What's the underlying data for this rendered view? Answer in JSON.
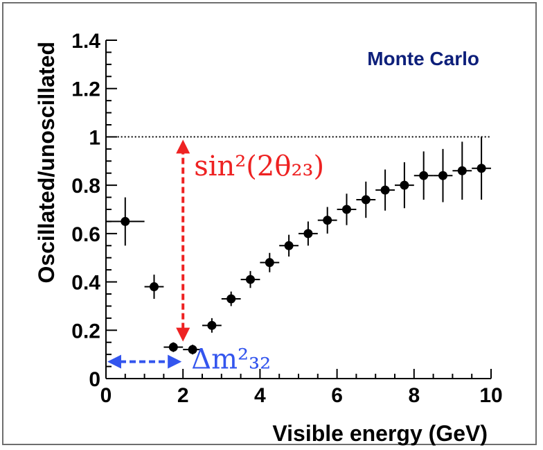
{
  "chart_data": {
    "type": "scatter",
    "title": "",
    "xlabel": "Visible energy (GeV)",
    "ylabel": "Oscillated/unoscillated",
    "xlim": [
      0,
      10
    ],
    "ylim": [
      0,
      1.4
    ],
    "x_ticks": [
      "0",
      "2",
      "4",
      "6",
      "8",
      "10"
    ],
    "y_ticks": [
      "0",
      "0.2",
      "0.4",
      "0.6",
      "0.8",
      "1",
      "1.2",
      "1.4"
    ],
    "grid": false,
    "reference_line_y": 1,
    "label": "Monte Carlo",
    "series": [
      {
        "points": [
          {
            "x": 0.5,
            "y": 0.65,
            "xerr": 0.5,
            "yerr": 0.1
          },
          {
            "x": 1.25,
            "y": 0.38,
            "xerr": 0.25,
            "yerr": 0.05
          },
          {
            "x": 1.75,
            "y": 0.13,
            "xerr": 0.25,
            "yerr": 0.02
          },
          {
            "x": 2.25,
            "y": 0.12,
            "xerr": 0.25,
            "yerr": 0.02
          },
          {
            "x": 2.75,
            "y": 0.22,
            "xerr": 0.25,
            "yerr": 0.03
          },
          {
            "x": 3.25,
            "y": 0.33,
            "xerr": 0.25,
            "yerr": 0.03
          },
          {
            "x": 3.75,
            "y": 0.41,
            "xerr": 0.25,
            "yerr": 0.035
          },
          {
            "x": 4.25,
            "y": 0.48,
            "xerr": 0.25,
            "yerr": 0.04
          },
          {
            "x": 4.75,
            "y": 0.55,
            "xerr": 0.25,
            "yerr": 0.045
          },
          {
            "x": 5.25,
            "y": 0.6,
            "xerr": 0.25,
            "yerr": 0.05
          },
          {
            "x": 5.75,
            "y": 0.655,
            "xerr": 0.25,
            "yerr": 0.055
          },
          {
            "x": 6.25,
            "y": 0.7,
            "xerr": 0.25,
            "yerr": 0.065
          },
          {
            "x": 6.75,
            "y": 0.74,
            "xerr": 0.25,
            "yerr": 0.075
          },
          {
            "x": 7.25,
            "y": 0.78,
            "xerr": 0.25,
            "yerr": 0.085
          },
          {
            "x": 7.75,
            "y": 0.8,
            "xerr": 0.25,
            "yerr": 0.095
          },
          {
            "x": 8.25,
            "y": 0.84,
            "xerr": 0.25,
            "yerr": 0.1
          },
          {
            "x": 8.75,
            "y": 0.84,
            "xerr": 0.25,
            "yerr": 0.11
          },
          {
            "x": 9.25,
            "y": 0.86,
            "xerr": 0.25,
            "yerr": 0.12
          },
          {
            "x": 9.75,
            "y": 0.87,
            "xerr": 0.25,
            "yerr": 0.13
          }
        ]
      }
    ],
    "annotations": [
      {
        "kind": "vertical-double-arrow",
        "x": 2.0,
        "y_from": 0.13,
        "y_to": 1.0,
        "color": "#ee2222",
        "text": "sin²(2θ₂₃)"
      },
      {
        "kind": "horizontal-double-arrow",
        "y": 0.07,
        "x_from": 0.0,
        "x_to": 2.0,
        "color": "#3355ee",
        "text": "Δm²₃₂"
      }
    ],
    "colors": {
      "points": "#000000",
      "label": "#0d1f7a",
      "sin_anno": "#ee2222",
      "dm_anno": "#3355ee",
      "refline": "#000000"
    }
  }
}
